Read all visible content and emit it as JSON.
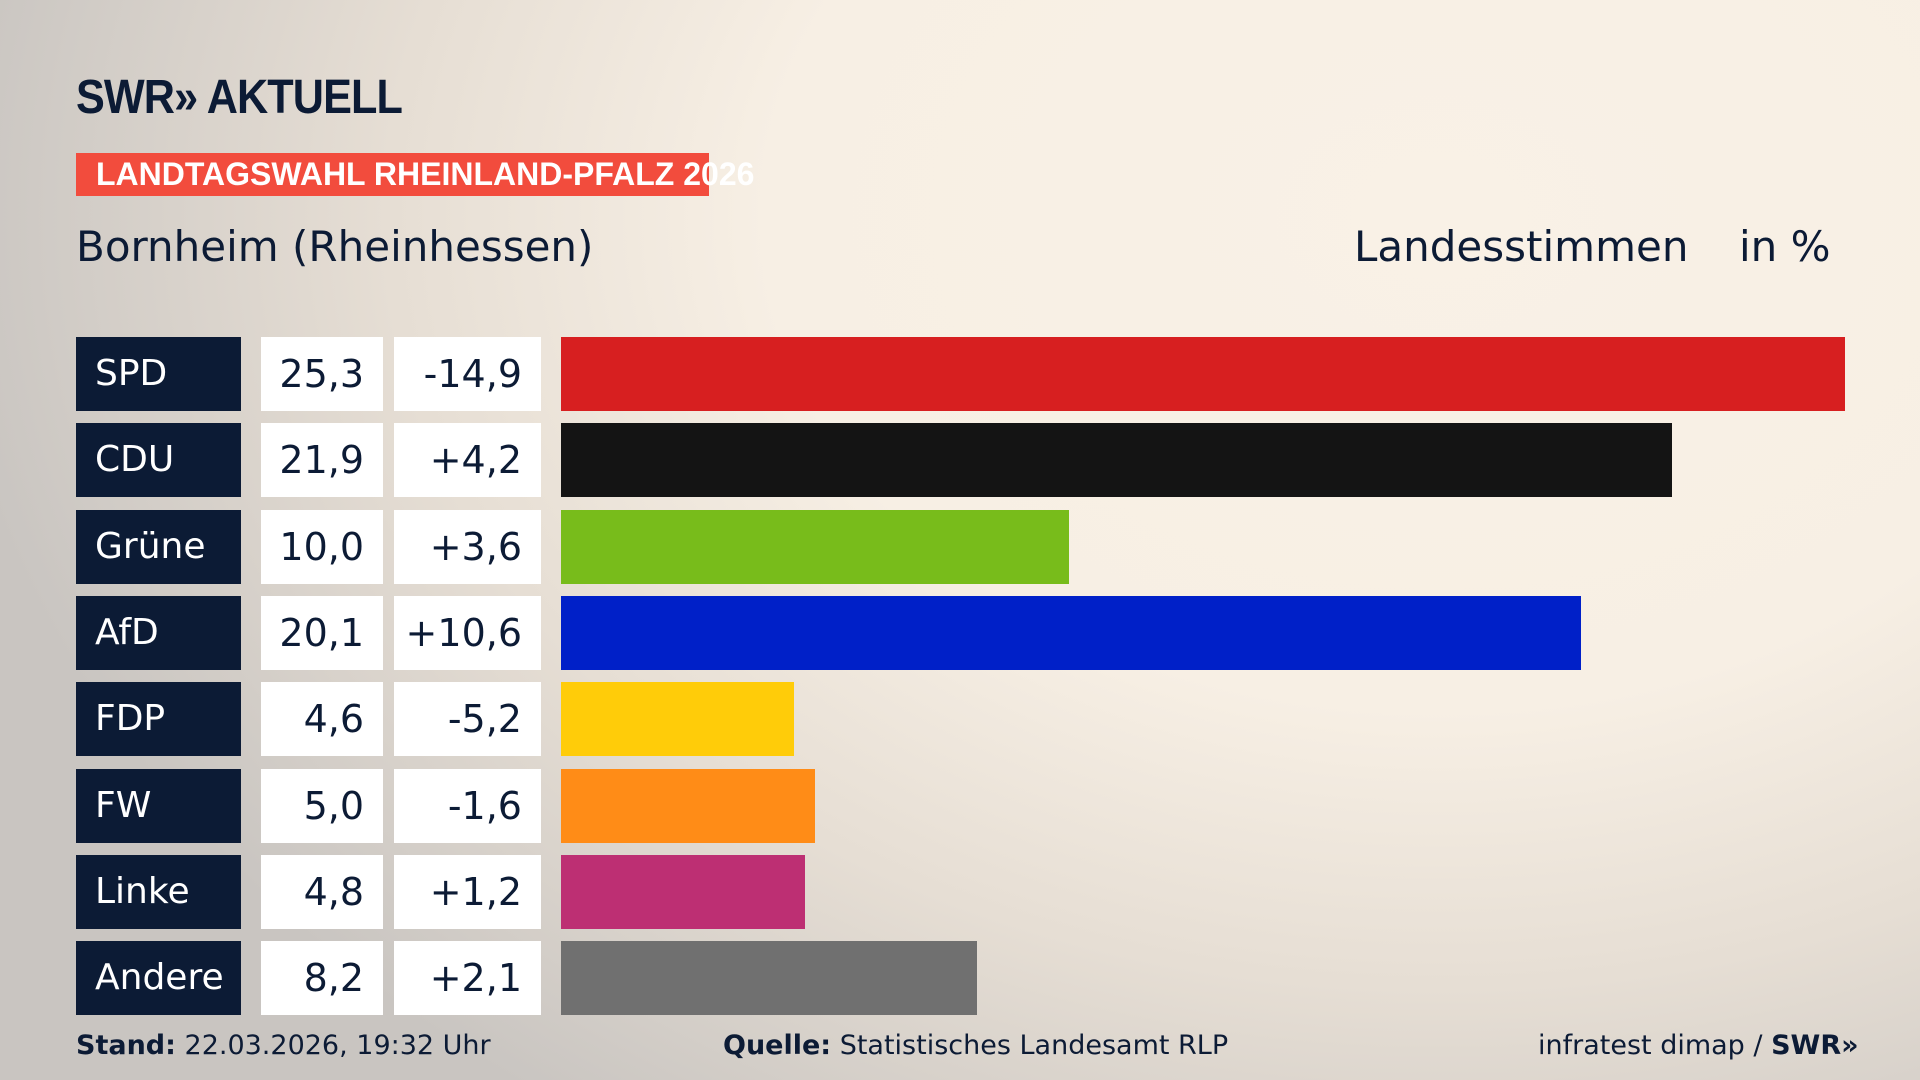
{
  "header": {
    "logo": "SWR» AKTUELL",
    "banner": "LANDTAGSWAHL RHEINLAND-PFALZ 2026",
    "location": "Bornheim (Rheinhessen)",
    "measure": "Landesstimmen",
    "unit": "in %"
  },
  "chart_data": {
    "type": "bar",
    "orientation": "horizontal",
    "categories": [
      "SPD",
      "CDU",
      "Grüne",
      "AfD",
      "FDP",
      "FW",
      "Linke",
      "Andere"
    ],
    "values": [
      25.3,
      21.9,
      10.0,
      20.1,
      4.6,
      5.0,
      4.8,
      8.2
    ],
    "labels": [
      "25,3",
      "21,9",
      "10,0",
      "20,1",
      "4,6",
      "5,0",
      "4,8",
      "8,2"
    ],
    "changes": [
      -14.9,
      4.2,
      3.6,
      10.6,
      -5.2,
      -1.6,
      1.2,
      2.1
    ],
    "change_labels": [
      "-14,9",
      "+4,2",
      "+3,6",
      "+10,6",
      "-5,2",
      "-1,6",
      "+1,2",
      "+2,1"
    ],
    "colors": [
      "#d71f20",
      "#141414",
      "#78bc1b",
      "#0020c8",
      "#ffcc09",
      "#ff8c17",
      "#bd2f73",
      "#707070"
    ],
    "title": "Landesstimmen",
    "ylabel": "in %"
  },
  "footer": {
    "stand_label": "Stand:",
    "stand": "22.03.2026, 19:32 Uhr",
    "source_label": "Quelle:",
    "source": "Statistisches Landesamt RLP",
    "credit": "infratest dimap / ",
    "credit_logo": "SWR»"
  }
}
